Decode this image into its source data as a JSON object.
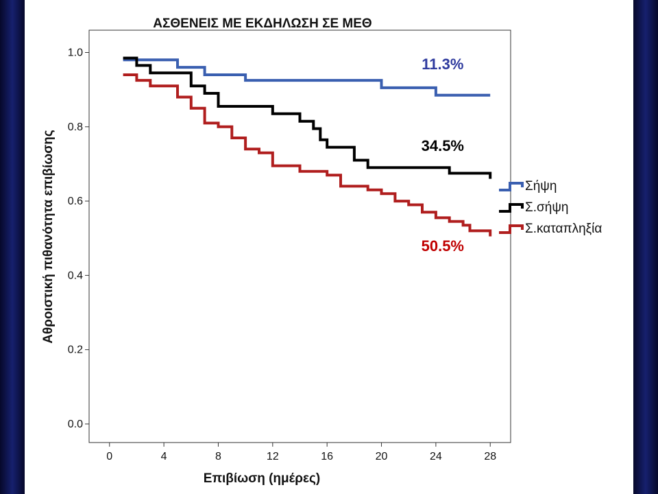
{
  "colors": {
    "sepsis": "#3a5fb0",
    "septic_shock": "#000000",
    "cardiac_arrest": "#b01e1e",
    "annot_blue": "#2e3a9e",
    "annot_black": "#000000",
    "annot_red": "#c00000",
    "side_band": "#101a5c"
  },
  "chart_data": {
    "type": "line",
    "step": true,
    "title": "ΑΣΘΕΝΕΙΣ ΜΕ ΕΚΔΗΛΩΣΗ ΣΕ ΜΕΘ",
    "xlabel": "Επιβίωση (ημέρες)",
    "ylabel": "Αθροιστική πιθανότητα επιβίωσης",
    "xlim": [
      -1.5,
      29.5
    ],
    "ylim": [
      -0.05,
      1.06
    ],
    "xticks": [
      0,
      4,
      8,
      12,
      16,
      20,
      24,
      28
    ],
    "xtick_labels": [
      "0",
      "4",
      "8",
      "12",
      "16",
      "20",
      "24",
      "28"
    ],
    "yticks": [
      0.0,
      0.2,
      0.4,
      0.6,
      0.8,
      1.0
    ],
    "ytick_labels": [
      "0.0",
      "0.2",
      "0.4",
      "0.6",
      "0.8",
      "1.0"
    ],
    "grid": false,
    "legend_position": "right",
    "series": [
      {
        "name": "Σήψη",
        "color_key": "sepsis",
        "points": [
          [
            1,
            0.98
          ],
          [
            5,
            0.98
          ],
          [
            5,
            0.96
          ],
          [
            7,
            0.96
          ],
          [
            7,
            0.94
          ],
          [
            10,
            0.94
          ],
          [
            10,
            0.925
          ],
          [
            20,
            0.925
          ],
          [
            20,
            0.905
          ],
          [
            24,
            0.905
          ],
          [
            24,
            0.885
          ],
          [
            28,
            0.885
          ]
        ]
      },
      {
        "name": "Σ.σήψη",
        "color_key": "septic_shock",
        "points": [
          [
            1,
            0.985
          ],
          [
            2,
            0.985
          ],
          [
            2,
            0.965
          ],
          [
            3,
            0.965
          ],
          [
            3,
            0.945
          ],
          [
            6,
            0.945
          ],
          [
            6,
            0.91
          ],
          [
            7,
            0.91
          ],
          [
            7,
            0.89
          ],
          [
            8,
            0.89
          ],
          [
            8,
            0.855
          ],
          [
            12,
            0.855
          ],
          [
            12,
            0.835
          ],
          [
            14,
            0.835
          ],
          [
            14,
            0.815
          ],
          [
            15,
            0.815
          ],
          [
            15,
            0.795
          ],
          [
            15.5,
            0.795
          ],
          [
            15.5,
            0.765
          ],
          [
            16,
            0.765
          ],
          [
            16,
            0.745
          ],
          [
            18,
            0.745
          ],
          [
            18,
            0.71
          ],
          [
            19,
            0.71
          ],
          [
            19,
            0.69
          ],
          [
            25,
            0.69
          ],
          [
            25,
            0.675
          ],
          [
            28,
            0.675
          ],
          [
            28,
            0.66
          ]
        ]
      },
      {
        "name": "Σ.καταπληξία",
        "color_key": "cardiac_arrest",
        "points": [
          [
            1,
            0.94
          ],
          [
            2,
            0.94
          ],
          [
            2,
            0.925
          ],
          [
            3,
            0.925
          ],
          [
            3,
            0.91
          ],
          [
            5,
            0.91
          ],
          [
            5,
            0.88
          ],
          [
            6,
            0.88
          ],
          [
            6,
            0.85
          ],
          [
            7,
            0.85
          ],
          [
            7,
            0.81
          ],
          [
            8,
            0.81
          ],
          [
            8,
            0.8
          ],
          [
            9,
            0.8
          ],
          [
            9,
            0.77
          ],
          [
            10,
            0.77
          ],
          [
            10,
            0.74
          ],
          [
            11,
            0.74
          ],
          [
            11,
            0.73
          ],
          [
            12,
            0.73
          ],
          [
            12,
            0.695
          ],
          [
            14,
            0.695
          ],
          [
            14,
            0.68
          ],
          [
            16,
            0.68
          ],
          [
            16,
            0.67
          ],
          [
            17,
            0.67
          ],
          [
            17,
            0.64
          ],
          [
            19,
            0.64
          ],
          [
            19,
            0.63
          ],
          [
            20,
            0.63
          ],
          [
            20,
            0.62
          ],
          [
            21,
            0.62
          ],
          [
            21,
            0.6
          ],
          [
            22,
            0.6
          ],
          [
            22,
            0.59
          ],
          [
            23,
            0.59
          ],
          [
            23,
            0.57
          ],
          [
            24,
            0.57
          ],
          [
            24,
            0.555
          ],
          [
            25,
            0.555
          ],
          [
            25,
            0.545
          ],
          [
            26,
            0.545
          ],
          [
            26,
            0.535
          ],
          [
            26.5,
            0.535
          ],
          [
            26.5,
            0.52
          ],
          [
            28,
            0.52
          ],
          [
            28,
            0.505
          ]
        ]
      }
    ],
    "annotations": [
      {
        "text": "11.3%",
        "x": 24.5,
        "y": 0.955,
        "color_key": "annot_blue"
      },
      {
        "text": "34.5%",
        "x": 24.5,
        "y": 0.735,
        "color_key": "annot_black"
      },
      {
        "text": "50.5%",
        "x": 24.5,
        "y": 0.465,
        "color_key": "annot_red"
      }
    ]
  }
}
